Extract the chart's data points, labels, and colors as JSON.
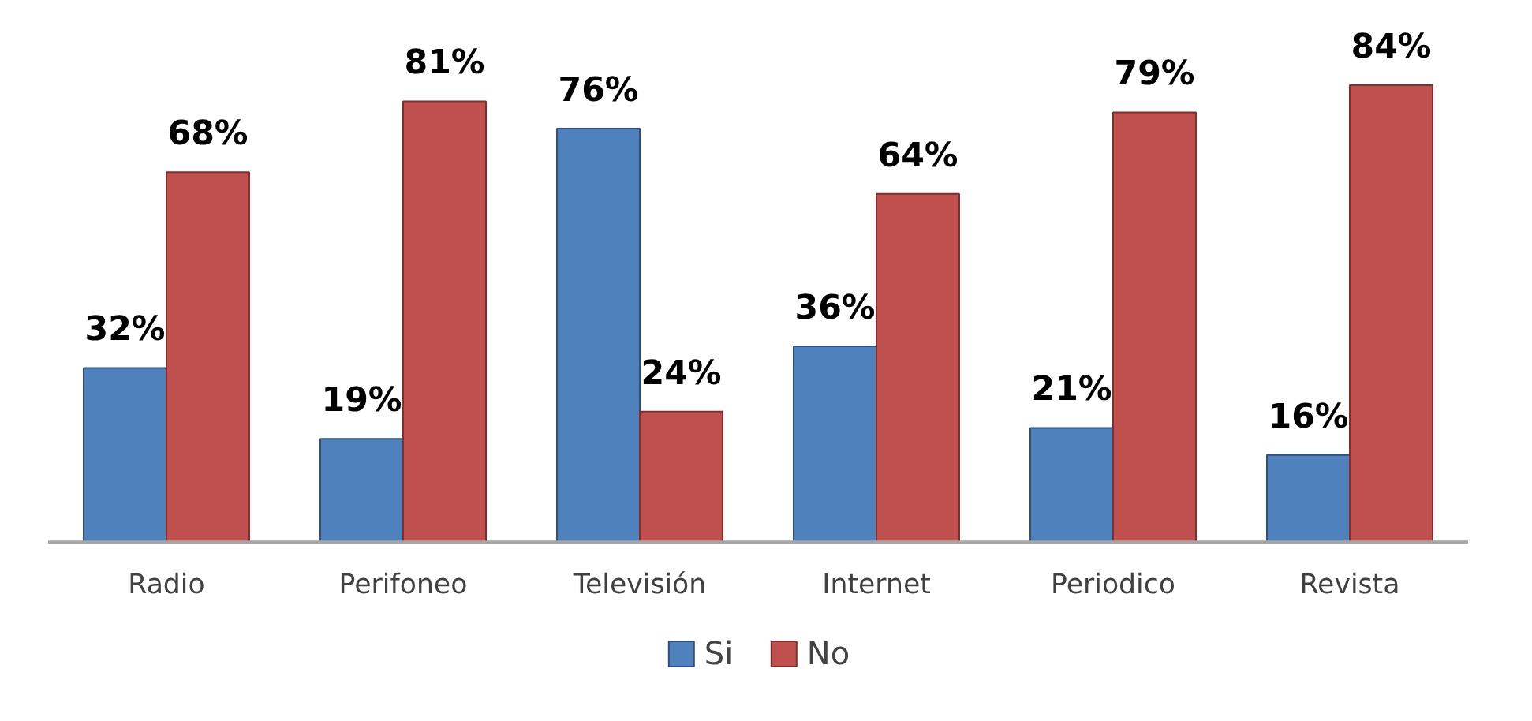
{
  "chart_data": {
    "type": "bar",
    "categories": [
      "Radio",
      "Perifoneo",
      "Televisión",
      "Internet",
      "Periodico",
      "Revista"
    ],
    "series": [
      {
        "name": "Si",
        "color": "#4f81bd",
        "values": [
          32,
          19,
          76,
          36,
          21,
          16
        ],
        "value_labels": [
          "32%",
          "19%",
          "76%",
          "36%",
          "21%",
          "16%"
        ]
      },
      {
        "name": "No",
        "color": "#c0504d",
        "values": [
          68,
          81,
          24,
          64,
          79,
          84
        ],
        "value_labels": [
          "68%",
          "81%",
          "24%",
          "64%",
          "79%",
          "84%"
        ]
      }
    ],
    "legend": "bottom",
    "grid": false
  }
}
